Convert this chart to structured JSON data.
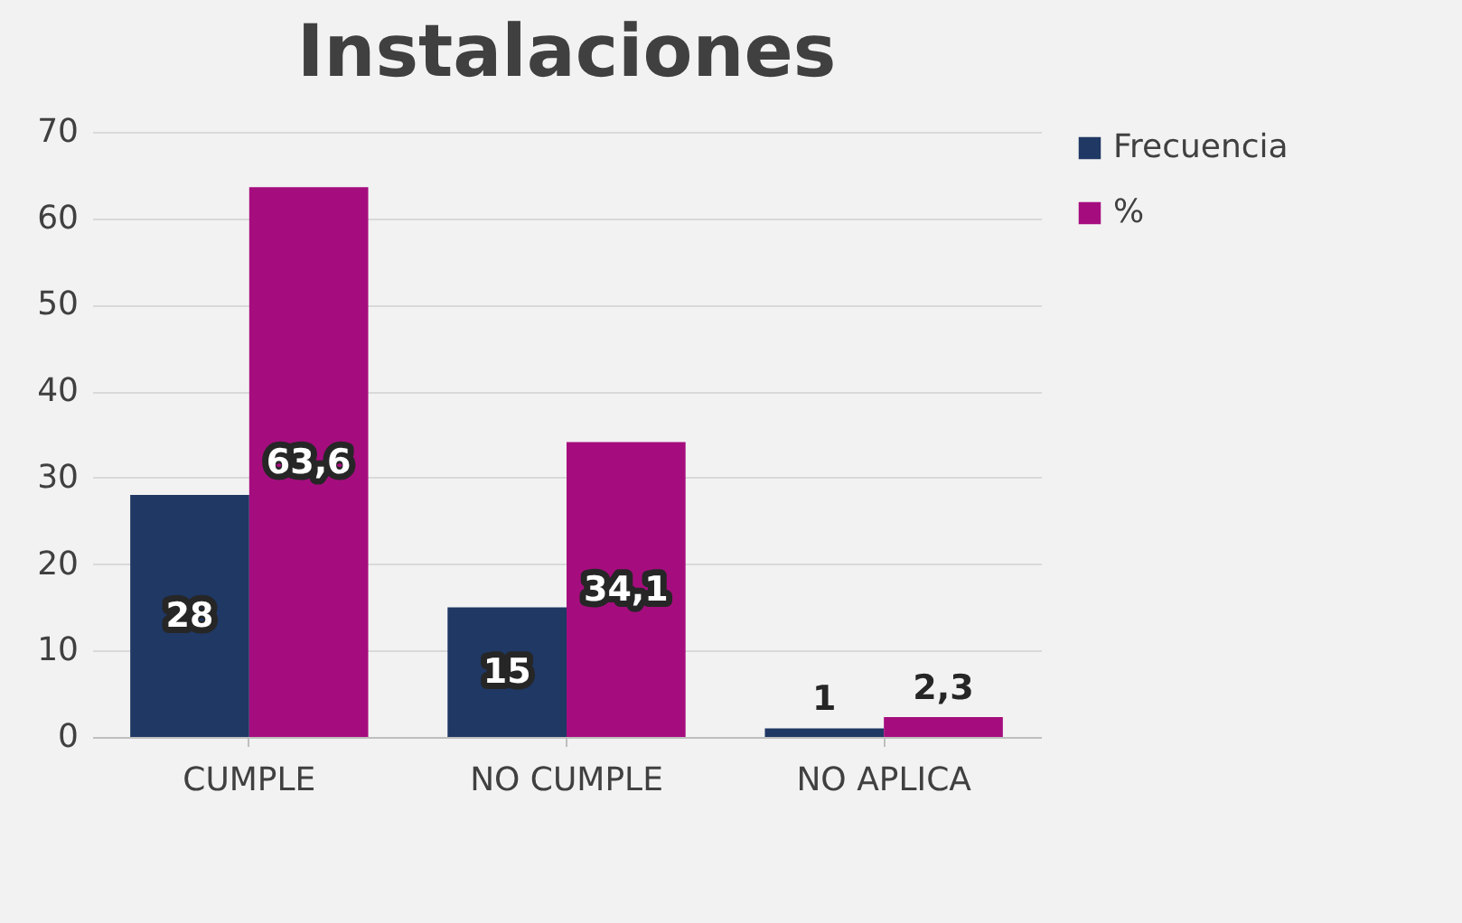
{
  "chart_data": {
    "type": "bar",
    "title": "Instalaciones",
    "categories": [
      "CUMPLE",
      "NO CUMPLE",
      "NO APLICA"
    ],
    "series": [
      {
        "name": "Frecuencia",
        "color": "#1f3864",
        "values": [
          28,
          15,
          1
        ],
        "value_labels": [
          "28",
          "15",
          "1"
        ]
      },
      {
        "name": "%",
        "color": "#a50d7e",
        "values": [
          63.6,
          34.1,
          2.3
        ],
        "value_labels": [
          "63,6",
          "34,1",
          "2,3"
        ]
      }
    ],
    "ylim": [
      0,
      70
    ],
    "yticks": [
      0,
      10,
      20,
      30,
      40,
      50,
      60,
      70
    ],
    "grid": "y",
    "legend": "right"
  }
}
